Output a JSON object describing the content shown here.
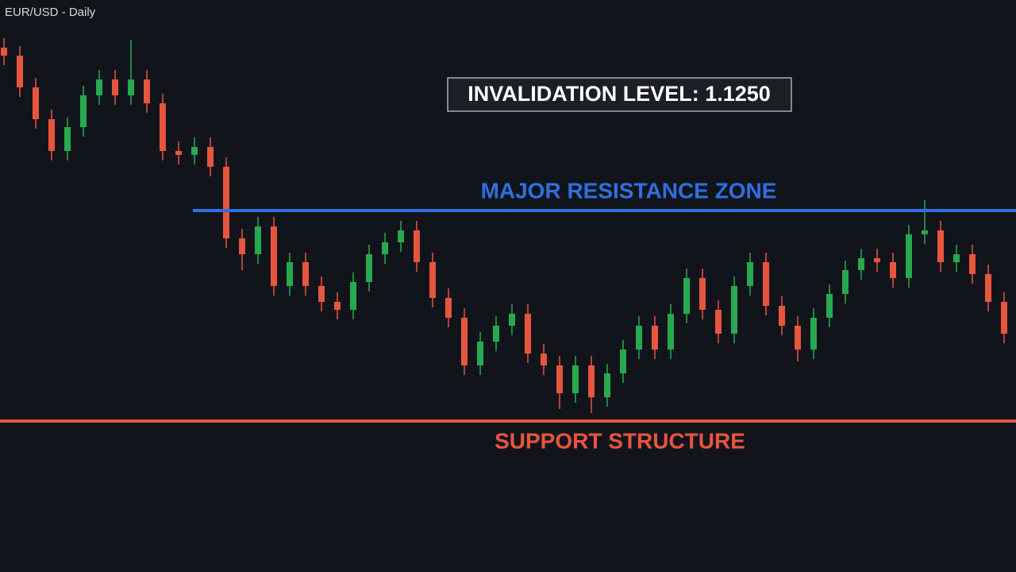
{
  "chart_data": {
    "type": "candlestick",
    "title": "EUR/USD - Daily",
    "annotation": "INVALIDATION LEVEL: 1.1250",
    "ylim": [
      0,
      720
    ],
    "up_color": "#27a94f",
    "down_color": "#e8553e",
    "open": [
      660,
      650,
      610,
      570,
      530,
      560,
      600,
      620,
      600,
      620,
      590,
      530,
      525,
      535,
      510,
      420,
      400,
      435,
      360,
      390,
      360,
      340,
      330,
      365,
      400,
      415,
      430,
      390,
      345,
      320,
      260,
      290,
      310,
      325,
      275,
      260,
      225,
      260,
      220,
      250,
      280,
      310,
      280,
      325,
      370,
      330,
      300,
      360,
      390,
      335,
      310,
      280,
      320,
      350,
      380,
      395,
      390,
      370,
      425,
      430,
      390,
      400,
      375,
      340
    ],
    "high": [
      672,
      662,
      622,
      582,
      572,
      612,
      632,
      632,
      670,
      632,
      602,
      542,
      547,
      547,
      522,
      432,
      447,
      447,
      402,
      402,
      372,
      352,
      377,
      412,
      427,
      442,
      442,
      402,
      357,
      332,
      302,
      322,
      337,
      337,
      287,
      272,
      272,
      272,
      262,
      292,
      322,
      322,
      337,
      382,
      382,
      342,
      372,
      402,
      402,
      347,
      322,
      332,
      362,
      392,
      407,
      407,
      402,
      437,
      468,
      442,
      412,
      412,
      387,
      352
    ],
    "low": [
      638,
      598,
      558,
      518,
      518,
      548,
      588,
      588,
      588,
      578,
      518,
      513,
      513,
      498,
      408,
      380,
      388,
      348,
      348,
      348,
      328,
      318,
      318,
      353,
      388,
      403,
      378,
      333,
      308,
      248,
      248,
      278,
      298,
      263,
      248,
      205,
      213,
      200,
      208,
      238,
      268,
      268,
      268,
      313,
      318,
      288,
      288,
      348,
      323,
      298,
      265,
      268,
      308,
      338,
      368,
      378,
      358,
      358,
      413,
      378,
      378,
      363,
      328,
      288
    ],
    "close": [
      650,
      610,
      570,
      530,
      560,
      600,
      620,
      600,
      620,
      590,
      530,
      525,
      535,
      510,
      420,
      400,
      435,
      360,
      390,
      360,
      340,
      330,
      365,
      400,
      415,
      430,
      390,
      345,
      320,
      260,
      290,
      310,
      325,
      275,
      260,
      225,
      260,
      220,
      250,
      280,
      310,
      280,
      325,
      370,
      330,
      300,
      360,
      390,
      335,
      310,
      280,
      320,
      350,
      380,
      395,
      390,
      370,
      425,
      430,
      390,
      400,
      375,
      340,
      300
    ],
    "levels": [
      {
        "label": "MAJOR RESISTANCE ZONE",
        "value": 455,
        "color": "#2f6fe0"
      },
      {
        "label": "SUPPORT STRUCTURE",
        "value": 190,
        "color": "#e8553e"
      }
    ]
  }
}
